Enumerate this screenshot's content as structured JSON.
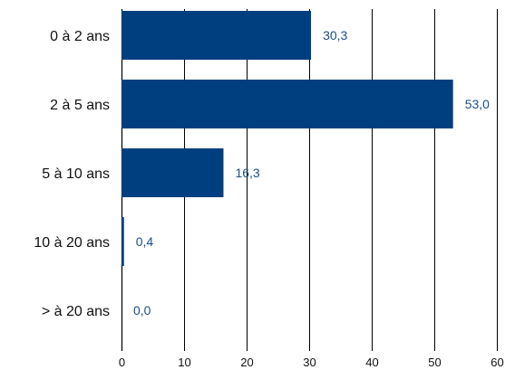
{
  "chart_data": {
    "type": "bar",
    "orientation": "horizontal",
    "categories": [
      "0 à 2 ans",
      "2 à 5 ans",
      "5 à 10 ans",
      "10 à 20 ans",
      "> à 20 ans"
    ],
    "values": [
      30.3,
      53.0,
      16.3,
      0.4,
      0.0
    ],
    "value_labels": [
      "30,3",
      "53,0",
      "16,3",
      "0,4",
      "0,0"
    ],
    "xlim": [
      0,
      60
    ],
    "x_ticks": [
      0,
      10,
      20,
      30,
      40,
      50,
      60
    ],
    "x_tick_labels": [
      "0",
      "10",
      "20",
      "30",
      "40",
      "50",
      "60"
    ],
    "grid": true,
    "legend": "none",
    "title": "",
    "xlabel": "",
    "ylabel": ""
  },
  "colors": {
    "bar": "#003f7f",
    "value_label": "#1a4f8a",
    "grid": "#000000",
    "text": "#111111"
  }
}
